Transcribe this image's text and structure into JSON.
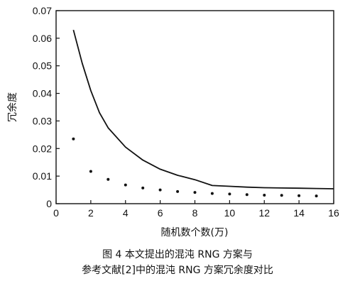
{
  "chart_data": {
    "type": "line",
    "xlabel": "随机数个数(万)",
    "ylabel": "冗余度",
    "xlim": [
      0,
      16
    ],
    "ylim": [
      0,
      0.07
    ],
    "x_ticks": [
      "0",
      "2",
      "4",
      "6",
      "8",
      "10",
      "12",
      "14",
      "16"
    ],
    "y_ticks": [
      "0",
      "0.01",
      "0.02",
      "0.03",
      "0.04",
      "0.05",
      "0.06",
      "0.07"
    ],
    "grid": false,
    "series": [
      {
        "style": "solid-line",
        "points": [
          [
            1,
            0.063
          ],
          [
            1.5,
            0.051
          ],
          [
            2,
            0.041
          ],
          [
            2.5,
            0.033
          ],
          [
            3,
            0.0275
          ],
          [
            4,
            0.0205
          ],
          [
            5,
            0.0158
          ],
          [
            6,
            0.0125
          ],
          [
            7,
            0.0103
          ],
          [
            8,
            0.0087
          ],
          [
            9,
            0.0066
          ],
          [
            10,
            0.0063
          ],
          [
            11,
            0.006
          ],
          [
            12,
            0.0058
          ],
          [
            13,
            0.0057
          ],
          [
            14,
            0.0056
          ],
          [
            15,
            0.0055
          ],
          [
            16,
            0.0054
          ]
        ]
      },
      {
        "style": "dots",
        "points": [
          [
            1,
            0.0235
          ],
          [
            2,
            0.0117
          ],
          [
            3,
            0.0088
          ],
          [
            4,
            0.0068
          ],
          [
            5,
            0.0057
          ],
          [
            6,
            0.005
          ],
          [
            7,
            0.0044
          ],
          [
            8,
            0.0041
          ],
          [
            9,
            0.0037
          ],
          [
            10,
            0.0035
          ],
          [
            11,
            0.0033
          ],
          [
            12,
            0.0031
          ],
          [
            13,
            0.003
          ],
          [
            14,
            0.0029
          ],
          [
            15,
            0.0028
          ]
        ]
      }
    ]
  },
  "caption": {
    "line1": "图 4  本文提出的混沌 RNG 方案与",
    "line2": "参考文献[2]中的混沌 RNG 方案冗余度对比"
  }
}
